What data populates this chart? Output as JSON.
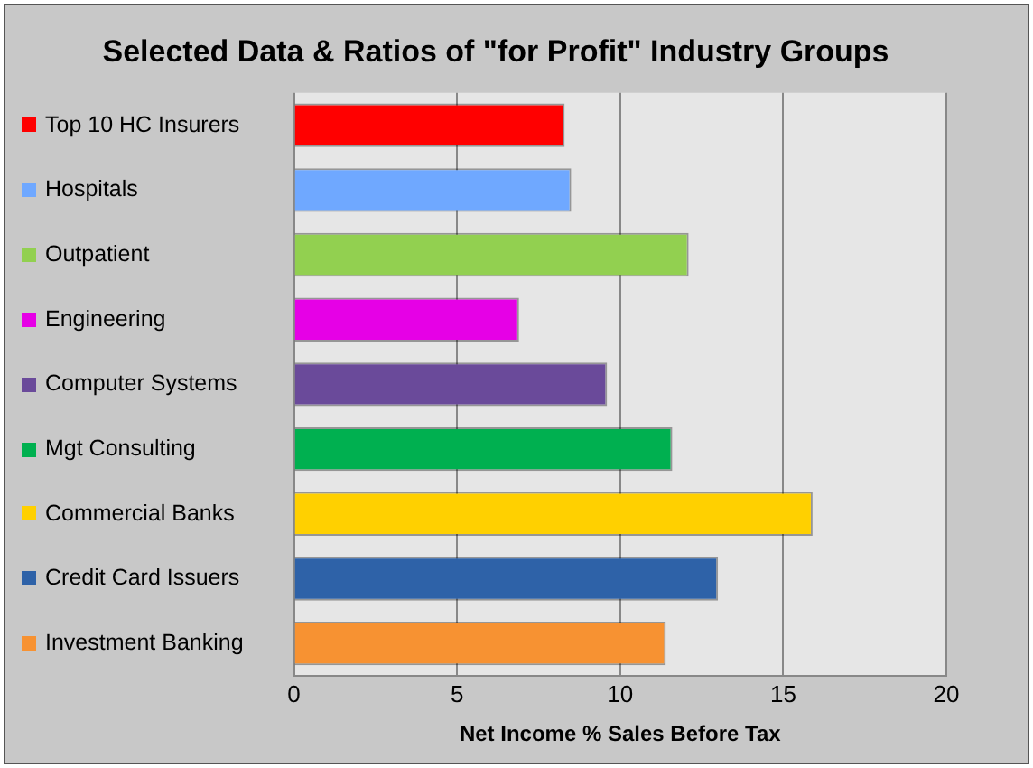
{
  "chart_data": {
    "type": "bar",
    "orientation": "horizontal",
    "title": "Selected Data & Ratios of \"for Profit\" Industry Groups",
    "xlabel": "Net Income % Sales Before Tax",
    "categories": [
      "Top 10 HC Insurers",
      "Hospitals",
      "Outpatient",
      "Engineering",
      "Computer Systems",
      "Mgt Consulting",
      "Commercial Banks",
      "Credit Card Issuers",
      "Investment Banking"
    ],
    "values": [
      8.3,
      8.5,
      12.1,
      6.9,
      9.6,
      11.6,
      15.9,
      13.0,
      11.4
    ],
    "colors": [
      "#ff0000",
      "#6fa8ff",
      "#92d050",
      "#e600e6",
      "#6a4a9a",
      "#00b050",
      "#ffd000",
      "#2e62a8",
      "#f79232"
    ],
    "xlim": [
      0,
      20
    ],
    "xticks": [
      0,
      5,
      10,
      15,
      20
    ],
    "grid": "x",
    "legend": false
  }
}
